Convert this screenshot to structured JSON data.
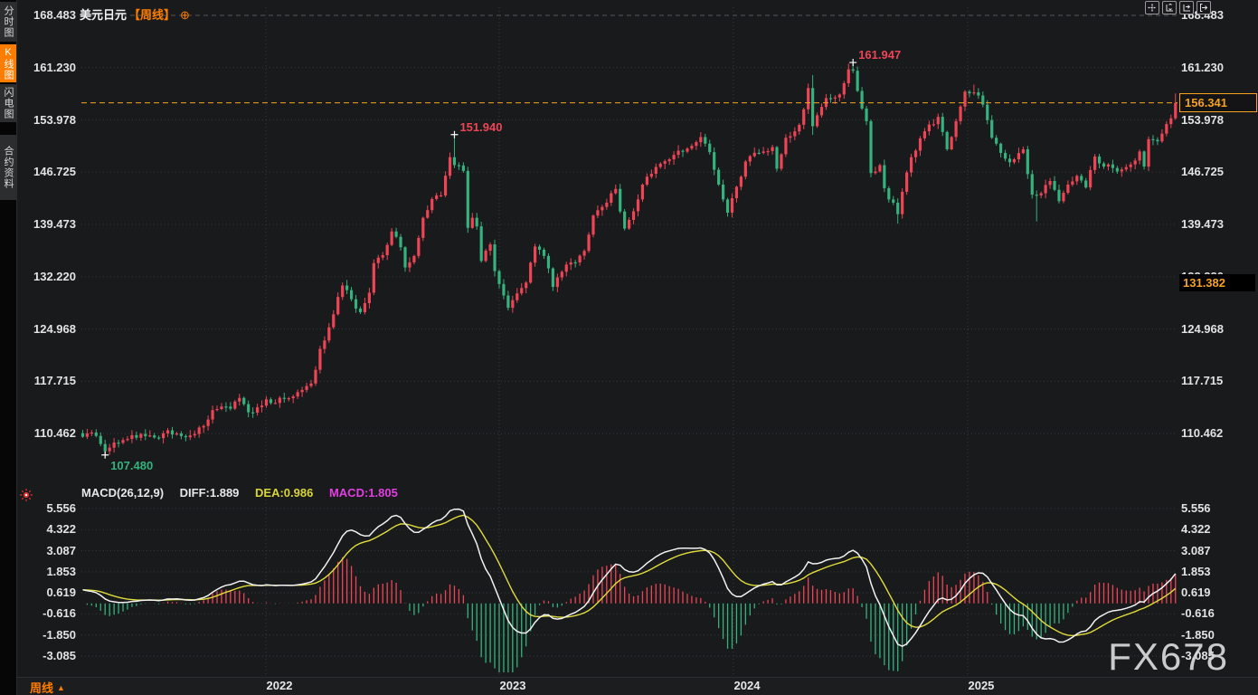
{
  "header": {
    "symbol": "美元日元",
    "period_tag": "【周线】",
    "add_icon": "⊕"
  },
  "sidebar": {
    "tabs": [
      {
        "label": "分时图",
        "active": false
      },
      {
        "label": "K线图",
        "active": true
      },
      {
        "label": "闪电图",
        "active": false
      },
      {
        "label": "合约资料",
        "active": false
      }
    ]
  },
  "toolbar": {
    "icons": [
      "crosshair",
      "scale-price-axis",
      "scale-time-axis",
      "pan-to-latest"
    ]
  },
  "footer": {
    "period_label": "周线",
    "arrow": "▲"
  },
  "watermark": "FX678",
  "colors": {
    "background": "#191a1c",
    "up_candle": "#ee4556",
    "down_candle": "#35b27d",
    "accent_orange": "#fd7d01",
    "price_line_orange": "#f6a21f",
    "diff_line": "#f2f2f2",
    "dea_line": "#e0dc3c",
    "macd_value": "#e23ee2",
    "grid": "#3a3b3f",
    "tick_text": "#e2e3e5"
  },
  "chart_data": {
    "type": "candlestick",
    "title": "美元日元 USD/JPY 周线 (weekly) with MACD(26,12,9)",
    "price_axis_ticks": [
      168.483,
      161.23,
      153.978,
      146.725,
      139.473,
      132.22,
      124.968,
      117.715,
      110.462
    ],
    "macd_axis_ticks": [
      5.556,
      4.322,
      3.087,
      1.853,
      0.619,
      -0.616,
      -1.85,
      -3.085
    ],
    "year_labels": [
      "2022",
      "2023",
      "2024",
      "2025"
    ],
    "year_week_positions": [
      41.9,
      94.0,
      146.3,
      198.6
    ],
    "weeks_total": 245,
    "current_price": 156.341,
    "current_price_label": "156.341",
    "left_tag_price": 131.382,
    "left_tag_label": "131.382",
    "markers": [
      {
        "week": 84,
        "price": 151.94,
        "label": "151.940",
        "kind": "high"
      },
      {
        "week": 173,
        "price": 161.947,
        "label": "161.947",
        "kind": "high"
      },
      {
        "week": 6,
        "price": 107.48,
        "label": "107.480",
        "kind": "low"
      }
    ],
    "weekly_close_anchors": [
      [
        1,
        110.0
      ],
      [
        3,
        110.6
      ],
      [
        5,
        109.0
      ],
      [
        6,
        108.0
      ],
      [
        8,
        109.2
      ],
      [
        11,
        109.7
      ],
      [
        14,
        110.4
      ],
      [
        17,
        109.9
      ],
      [
        20,
        110.9
      ],
      [
        23,
        110.1
      ],
      [
        26,
        110.4
      ],
      [
        28,
        111.5
      ],
      [
        30,
        113.7
      ],
      [
        32,
        114.2
      ],
      [
        34,
        113.9
      ],
      [
        36,
        115.4
      ],
      [
        38,
        113.4
      ],
      [
        40,
        114.1
      ],
      [
        42,
        115.2
      ],
      [
        44,
        114.7
      ],
      [
        46,
        115.3
      ],
      [
        48,
        115.6
      ],
      [
        50,
        116.5
      ],
      [
        52,
        117.4
      ],
      [
        53,
        119.3
      ],
      [
        54,
        122.2
      ],
      [
        56,
        125.2
      ],
      [
        58,
        129.4
      ],
      [
        59,
        131.0
      ],
      [
        61,
        129.1
      ],
      [
        63,
        127.3
      ],
      [
        65,
        130.0
      ],
      [
        66,
        134.1
      ],
      [
        68,
        135.2
      ],
      [
        70,
        138.5
      ],
      [
        72,
        136.3
      ],
      [
        73,
        133.5
      ],
      [
        75,
        135.1
      ],
      [
        76,
        137.6
      ],
      [
        77,
        140.4
      ],
      [
        79,
        143.0
      ],
      [
        81,
        143.5
      ],
      [
        83,
        148.8
      ],
      [
        84,
        147.7
      ],
      [
        86,
        146.9
      ],
      [
        87,
        139.0
      ],
      [
        88,
        140.4
      ],
      [
        89,
        139.2
      ],
      [
        90,
        134.4
      ],
      [
        92,
        136.7
      ],
      [
        93,
        133.0
      ],
      [
        94,
        131.2
      ],
      [
        96,
        127.9
      ],
      [
        98,
        129.9
      ],
      [
        100,
        131.4
      ],
      [
        102,
        136.4
      ],
      [
        104,
        135.1
      ],
      [
        106,
        130.8
      ],
      [
        108,
        132.9
      ],
      [
        109,
        133.9
      ],
      [
        111,
        134.2
      ],
      [
        113,
        135.8
      ],
      [
        115,
        140.7
      ],
      [
        117,
        141.9
      ],
      [
        119,
        143.8
      ],
      [
        120,
        144.4
      ],
      [
        122,
        138.9
      ],
      [
        124,
        141.3
      ],
      [
        126,
        145.0
      ],
      [
        128,
        146.5
      ],
      [
        130,
        147.9
      ],
      [
        132,
        148.5
      ],
      [
        134,
        149.7
      ],
      [
        136,
        150.0
      ],
      [
        139,
        151.6
      ],
      [
        141,
        149.5
      ],
      [
        143,
        145.0
      ],
      [
        145,
        141.1
      ],
      [
        147,
        144.7
      ],
      [
        149,
        148.2
      ],
      [
        152,
        149.4
      ],
      [
        155,
        150.2
      ],
      [
        156,
        147.2
      ],
      [
        158,
        151.5
      ],
      [
        161,
        153.3
      ],
      [
        163,
        158.4
      ],
      [
        164,
        153.1
      ],
      [
        167,
        157.0
      ],
      [
        170,
        157.5
      ],
      [
        172,
        161.0
      ],
      [
        173,
        160.8
      ],
      [
        174,
        158.0
      ],
      [
        176,
        153.8
      ],
      [
        177,
        146.6
      ],
      [
        179,
        147.7
      ],
      [
        180,
        144.5
      ],
      [
        183,
        140.9
      ],
      [
        184,
        144.0
      ],
      [
        186,
        148.8
      ],
      [
        189,
        152.4
      ],
      [
        192,
        154.4
      ],
      [
        194,
        149.9
      ],
      [
        196,
        153.8
      ],
      [
        198,
        157.9
      ],
      [
        200,
        157.8
      ],
      [
        202,
        156.1
      ],
      [
        204,
        151.5
      ],
      [
        206,
        149.4
      ],
      [
        208,
        148.1
      ],
      [
        211,
        149.9
      ],
      [
        213,
        143.6
      ],
      [
        215,
        143.8
      ],
      [
        217,
        145.5
      ],
      [
        219,
        142.7
      ],
      [
        221,
        145.0
      ],
      [
        223,
        146.2
      ],
      [
        225,
        144.6
      ],
      [
        227,
        148.9
      ],
      [
        229,
        147.5
      ],
      [
        231,
        147.3
      ],
      [
        233,
        147.1
      ],
      [
        235,
        147.8
      ],
      [
        237,
        149.6
      ],
      [
        238,
        147.5
      ],
      [
        239,
        151.3
      ],
      [
        241,
        151.0
      ],
      [
        243,
        153.4
      ],
      [
        244,
        154.2
      ],
      [
        245,
        156.341
      ]
    ],
    "wick_overrides": {
      "6": {
        "low": 107.48
      },
      "84": {
        "high": 151.94
      },
      "164": {
        "high": 160.2,
        "low": 151.9
      },
      "173": {
        "high": 161.947
      },
      "183": {
        "low": 139.58
      },
      "200": {
        "high": 158.88
      },
      "214": {
        "low": 139.89
      },
      "245": {
        "high": 157.65
      }
    },
    "macd": {
      "title": "MACD(26,12,9)",
      "diff_label": "DIFF:1.889",
      "dea_label": "DEA:0.986",
      "macd_label": "MACD:1.805",
      "diff": 1.889,
      "dea": 0.986,
      "macd": 1.805,
      "histogram_rule": "2*(DIFF-DEA)"
    },
    "ylim_price": [
      106.8,
      169.5
    ],
    "ylim_macd": [
      -3.4,
      5.9
    ],
    "grid": "dotted"
  }
}
